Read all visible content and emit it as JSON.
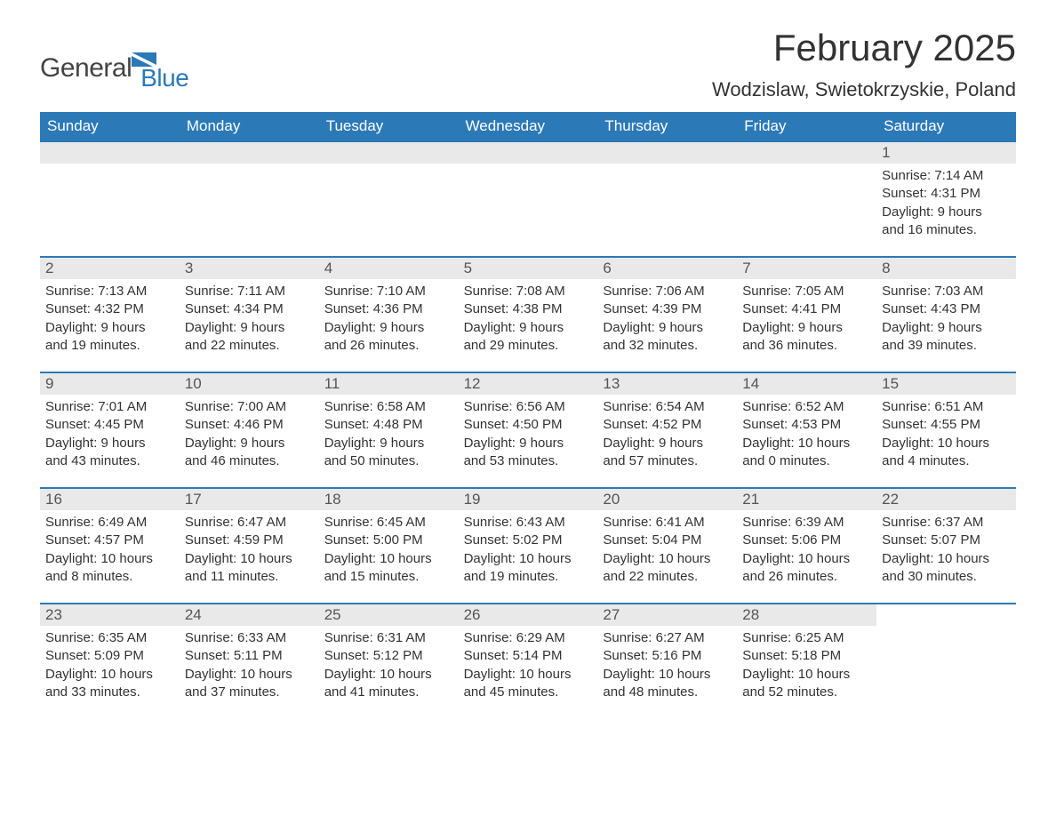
{
  "logo": {
    "general": "General",
    "blue": "Blue",
    "flag_color": "#2c79b8"
  },
  "header": {
    "month_title": "February 2025",
    "location": "Wodzislaw, Swietokrzyskie, Poland"
  },
  "styling": {
    "header_bg": "#2c79b8",
    "header_text_color": "#ffffff",
    "daynum_bg": "#e9e9e9",
    "week_border_color": "#2c79b8",
    "body_text_color": "#333333",
    "page_bg": "#ffffff",
    "month_title_fontsize": 42,
    "location_fontsize": 22,
    "dow_fontsize": 17,
    "body_fontsize": 15
  },
  "days_of_week": [
    "Sunday",
    "Monday",
    "Tuesday",
    "Wednesday",
    "Thursday",
    "Friday",
    "Saturday"
  ],
  "weeks": [
    [
      {
        "empty": true
      },
      {
        "empty": true
      },
      {
        "empty": true
      },
      {
        "empty": true
      },
      {
        "empty": true
      },
      {
        "empty": true
      },
      {
        "day": "1",
        "sunrise": "Sunrise: 7:14 AM",
        "sunset": "Sunset: 4:31 PM",
        "daylight1": "Daylight: 9 hours",
        "daylight2": "and 16 minutes."
      }
    ],
    [
      {
        "day": "2",
        "sunrise": "Sunrise: 7:13 AM",
        "sunset": "Sunset: 4:32 PM",
        "daylight1": "Daylight: 9 hours",
        "daylight2": "and 19 minutes."
      },
      {
        "day": "3",
        "sunrise": "Sunrise: 7:11 AM",
        "sunset": "Sunset: 4:34 PM",
        "daylight1": "Daylight: 9 hours",
        "daylight2": "and 22 minutes."
      },
      {
        "day": "4",
        "sunrise": "Sunrise: 7:10 AM",
        "sunset": "Sunset: 4:36 PM",
        "daylight1": "Daylight: 9 hours",
        "daylight2": "and 26 minutes."
      },
      {
        "day": "5",
        "sunrise": "Sunrise: 7:08 AM",
        "sunset": "Sunset: 4:38 PM",
        "daylight1": "Daylight: 9 hours",
        "daylight2": "and 29 minutes."
      },
      {
        "day": "6",
        "sunrise": "Sunrise: 7:06 AM",
        "sunset": "Sunset: 4:39 PM",
        "daylight1": "Daylight: 9 hours",
        "daylight2": "and 32 minutes."
      },
      {
        "day": "7",
        "sunrise": "Sunrise: 7:05 AM",
        "sunset": "Sunset: 4:41 PM",
        "daylight1": "Daylight: 9 hours",
        "daylight2": "and 36 minutes."
      },
      {
        "day": "8",
        "sunrise": "Sunrise: 7:03 AM",
        "sunset": "Sunset: 4:43 PM",
        "daylight1": "Daylight: 9 hours",
        "daylight2": "and 39 minutes."
      }
    ],
    [
      {
        "day": "9",
        "sunrise": "Sunrise: 7:01 AM",
        "sunset": "Sunset: 4:45 PM",
        "daylight1": "Daylight: 9 hours",
        "daylight2": "and 43 minutes."
      },
      {
        "day": "10",
        "sunrise": "Sunrise: 7:00 AM",
        "sunset": "Sunset: 4:46 PM",
        "daylight1": "Daylight: 9 hours",
        "daylight2": "and 46 minutes."
      },
      {
        "day": "11",
        "sunrise": "Sunrise: 6:58 AM",
        "sunset": "Sunset: 4:48 PM",
        "daylight1": "Daylight: 9 hours",
        "daylight2": "and 50 minutes."
      },
      {
        "day": "12",
        "sunrise": "Sunrise: 6:56 AM",
        "sunset": "Sunset: 4:50 PM",
        "daylight1": "Daylight: 9 hours",
        "daylight2": "and 53 minutes."
      },
      {
        "day": "13",
        "sunrise": "Sunrise: 6:54 AM",
        "sunset": "Sunset: 4:52 PM",
        "daylight1": "Daylight: 9 hours",
        "daylight2": "and 57 minutes."
      },
      {
        "day": "14",
        "sunrise": "Sunrise: 6:52 AM",
        "sunset": "Sunset: 4:53 PM",
        "daylight1": "Daylight: 10 hours",
        "daylight2": "and 0 minutes."
      },
      {
        "day": "15",
        "sunrise": "Sunrise: 6:51 AM",
        "sunset": "Sunset: 4:55 PM",
        "daylight1": "Daylight: 10 hours",
        "daylight2": "and 4 minutes."
      }
    ],
    [
      {
        "day": "16",
        "sunrise": "Sunrise: 6:49 AM",
        "sunset": "Sunset: 4:57 PM",
        "daylight1": "Daylight: 10 hours",
        "daylight2": "and 8 minutes."
      },
      {
        "day": "17",
        "sunrise": "Sunrise: 6:47 AM",
        "sunset": "Sunset: 4:59 PM",
        "daylight1": "Daylight: 10 hours",
        "daylight2": "and 11 minutes."
      },
      {
        "day": "18",
        "sunrise": "Sunrise: 6:45 AM",
        "sunset": "Sunset: 5:00 PM",
        "daylight1": "Daylight: 10 hours",
        "daylight2": "and 15 minutes."
      },
      {
        "day": "19",
        "sunrise": "Sunrise: 6:43 AM",
        "sunset": "Sunset: 5:02 PM",
        "daylight1": "Daylight: 10 hours",
        "daylight2": "and 19 minutes."
      },
      {
        "day": "20",
        "sunrise": "Sunrise: 6:41 AM",
        "sunset": "Sunset: 5:04 PM",
        "daylight1": "Daylight: 10 hours",
        "daylight2": "and 22 minutes."
      },
      {
        "day": "21",
        "sunrise": "Sunrise: 6:39 AM",
        "sunset": "Sunset: 5:06 PM",
        "daylight1": "Daylight: 10 hours",
        "daylight2": "and 26 minutes."
      },
      {
        "day": "22",
        "sunrise": "Sunrise: 6:37 AM",
        "sunset": "Sunset: 5:07 PM",
        "daylight1": "Daylight: 10 hours",
        "daylight2": "and 30 minutes."
      }
    ],
    [
      {
        "day": "23",
        "sunrise": "Sunrise: 6:35 AM",
        "sunset": "Sunset: 5:09 PM",
        "daylight1": "Daylight: 10 hours",
        "daylight2": "and 33 minutes."
      },
      {
        "day": "24",
        "sunrise": "Sunrise: 6:33 AM",
        "sunset": "Sunset: 5:11 PM",
        "daylight1": "Daylight: 10 hours",
        "daylight2": "and 37 minutes."
      },
      {
        "day": "25",
        "sunrise": "Sunrise: 6:31 AM",
        "sunset": "Sunset: 5:12 PM",
        "daylight1": "Daylight: 10 hours",
        "daylight2": "and 41 minutes."
      },
      {
        "day": "26",
        "sunrise": "Sunrise: 6:29 AM",
        "sunset": "Sunset: 5:14 PM",
        "daylight1": "Daylight: 10 hours",
        "daylight2": "and 45 minutes."
      },
      {
        "day": "27",
        "sunrise": "Sunrise: 6:27 AM",
        "sunset": "Sunset: 5:16 PM",
        "daylight1": "Daylight: 10 hours",
        "daylight2": "and 48 minutes."
      },
      {
        "day": "28",
        "sunrise": "Sunrise: 6:25 AM",
        "sunset": "Sunset: 5:18 PM",
        "daylight1": "Daylight: 10 hours",
        "daylight2": "and 52 minutes."
      },
      {
        "empty": true,
        "noBar": true
      }
    ]
  ]
}
